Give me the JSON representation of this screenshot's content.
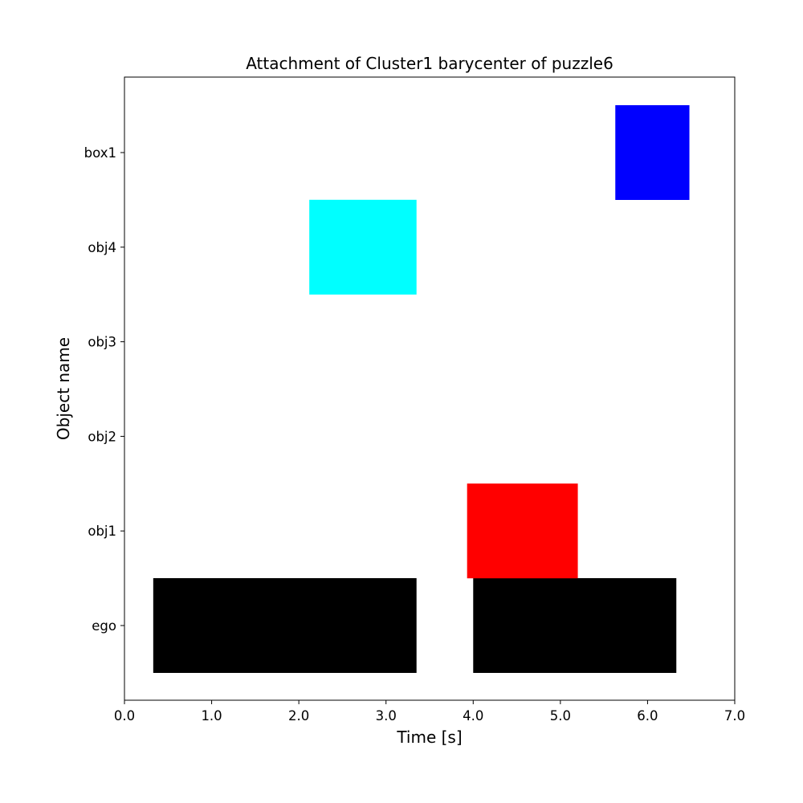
{
  "chart_data": {
    "type": "bar",
    "orientation": "horizontal-broken",
    "title": "Attachment of Cluster1 barycenter of puzzle6",
    "xlabel": "Time [s]",
    "ylabel": "Object name",
    "xlim": [
      0,
      7
    ],
    "xticks": [
      0,
      1,
      2,
      3,
      4,
      5,
      6,
      7
    ],
    "xtick_labels": [
      "0.0",
      "1.0",
      "2.0",
      "3.0",
      "4.0",
      "5.0",
      "6.0",
      "7.0"
    ],
    "categories": [
      "ego",
      "obj1",
      "obj2",
      "obj3",
      "obj4",
      "box1"
    ],
    "grid": false,
    "series": [
      {
        "category": "ego",
        "color": "#000000",
        "segments": [
          [
            0.33,
            3.35
          ],
          [
            4.0,
            6.33
          ]
        ]
      },
      {
        "category": "obj1",
        "color": "#ff0000",
        "segments": [
          [
            3.93,
            5.2
          ]
        ]
      },
      {
        "category": "obj2",
        "color": "#00ff00",
        "segments": []
      },
      {
        "category": "obj3",
        "color": "#ff00ff",
        "segments": []
      },
      {
        "category": "obj4",
        "color": "#00ffff",
        "segments": [
          [
            2.12,
            3.35
          ]
        ]
      },
      {
        "category": "box1",
        "color": "#0000ff",
        "segments": [
          [
            5.63,
            6.48
          ]
        ]
      }
    ]
  }
}
